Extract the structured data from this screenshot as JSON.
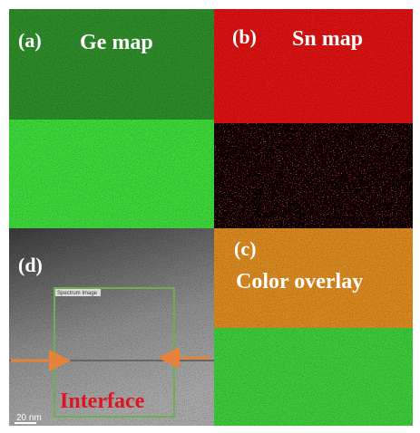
{
  "panels": [
    {
      "label": "(a)",
      "title": "Ge map"
    },
    {
      "label": "(b)",
      "title": "Sn map"
    },
    {
      "label": "(c)",
      "title": "Color overlay"
    },
    {
      "label": "(d)",
      "box_label": "Spectrum Image",
      "annotation": "Interface",
      "scale_bar": "20 nm"
    }
  ]
}
